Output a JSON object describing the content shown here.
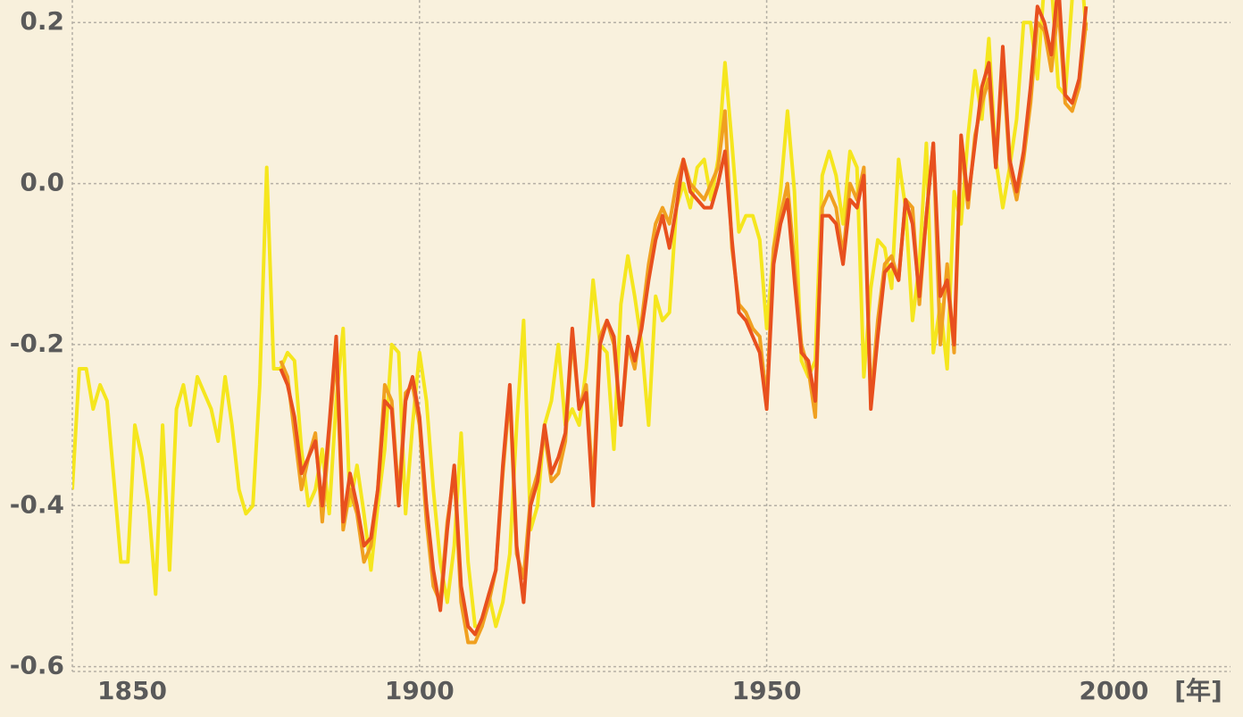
{
  "chart_data": {
    "type": "line",
    "x_label": "[年]",
    "xlim": [
      1850,
      2016.8
    ],
    "ylim": [
      -0.606,
      0.228
    ],
    "xticks": [
      1850,
      1900,
      1950,
      2000
    ],
    "yticks": [
      0.2,
      {
        "value": 0,
        "label": "0.0"
      },
      -0.2,
      -0.4,
      -0.6
    ],
    "grid": true,
    "x": [
      1850,
      1851,
      1852,
      1853,
      1854,
      1855,
      1856,
      1857,
      1858,
      1859,
      1860,
      1861,
      1862,
      1863,
      1864,
      1865,
      1866,
      1867,
      1868,
      1869,
      1870,
      1871,
      1872,
      1873,
      1874,
      1875,
      1876,
      1877,
      1878,
      1879,
      1880,
      1881,
      1882,
      1883,
      1884,
      1885,
      1886,
      1887,
      1888,
      1889,
      1890,
      1891,
      1892,
      1893,
      1894,
      1895,
      1896,
      1897,
      1898,
      1899,
      1900,
      1901,
      1902,
      1903,
      1904,
      1905,
      1906,
      1907,
      1908,
      1909,
      1910,
      1911,
      1912,
      1913,
      1914,
      1915,
      1916,
      1917,
      1918,
      1919,
      1920,
      1921,
      1922,
      1923,
      1924,
      1925,
      1926,
      1927,
      1928,
      1929,
      1930,
      1931,
      1932,
      1933,
      1934,
      1935,
      1936,
      1937,
      1938,
      1939,
      1940,
      1941,
      1942,
      1943,
      1944,
      1945,
      1946,
      1947,
      1948,
      1949,
      1950,
      1951,
      1952,
      1953,
      1954,
      1955,
      1956,
      1957,
      1958,
      1959,
      1960,
      1961,
      1962,
      1963,
      1964,
      1965,
      1966,
      1967,
      1968,
      1969,
      1970,
      1971,
      1972,
      1973,
      1974,
      1975,
      1976,
      1977,
      1978,
      1979,
      1980,
      1981,
      1982,
      1983,
      1984,
      1985,
      1986,
      1987,
      1988,
      1989,
      1990,
      1991,
      1992,
      1993,
      1994,
      1995,
      1996
    ],
    "series": [
      {
        "color": "#f5e61e",
        "values": [
          -0.38,
          -0.23,
          -0.23,
          -0.28,
          -0.25,
          -0.27,
          -0.37,
          -0.47,
          -0.47,
          -0.3,
          -0.34,
          -0.4,
          -0.51,
          -0.3,
          -0.48,
          -0.28,
          -0.25,
          -0.3,
          -0.24,
          -0.26,
          -0.28,
          -0.32,
          -0.24,
          -0.3,
          -0.38,
          -0.41,
          -0.4,
          -0.25,
          0.02,
          -0.23,
          -0.23,
          -0.21,
          -0.22,
          -0.33,
          -0.4,
          -0.38,
          -0.33,
          -0.41,
          -0.27,
          -0.18,
          -0.4,
          -0.35,
          -0.41,
          -0.48,
          -0.4,
          -0.33,
          -0.2,
          -0.21,
          -0.41,
          -0.3,
          -0.21,
          -0.27,
          -0.38,
          -0.47,
          -0.52,
          -0.45,
          -0.31,
          -0.47,
          -0.55,
          -0.55,
          -0.51,
          -0.55,
          -0.52,
          -0.46,
          -0.3,
          -0.17,
          -0.43,
          -0.4,
          -0.3,
          -0.27,
          -0.2,
          -0.3,
          -0.28,
          -0.3,
          -0.23,
          -0.12,
          -0.2,
          -0.21,
          -0.33,
          -0.15,
          -0.09,
          -0.14,
          -0.2,
          -0.3,
          -0.14,
          -0.17,
          -0.16,
          -0.03,
          0.0,
          -0.03,
          0.02,
          0.03,
          -0.02,
          0.03,
          0.15,
          0.05,
          -0.06,
          -0.04,
          -0.04,
          -0.07,
          -0.18,
          -0.08,
          -0.01,
          0.09,
          -0.01,
          -0.22,
          -0.24,
          -0.22,
          0.01,
          0.04,
          0.01,
          -0.05,
          0.04,
          0.02,
          -0.24,
          -0.13,
          -0.07,
          -0.08,
          -0.13,
          0.03,
          -0.03,
          -0.17,
          -0.1,
          0.05,
          -0.21,
          -0.15,
          -0.23,
          -0.01,
          -0.05,
          0.06,
          0.14,
          0.08,
          0.18,
          0.03,
          -0.03,
          0.02,
          0.08,
          0.2,
          0.2,
          0.13,
          0.25,
          0.25,
          0.12,
          0.11,
          0.23,
          0.3,
          0.19
        ]
      },
      {
        "color": "#f0a020",
        "values": [
          null,
          null,
          null,
          null,
          null,
          null,
          null,
          null,
          null,
          null,
          null,
          null,
          null,
          null,
          null,
          null,
          null,
          null,
          null,
          null,
          null,
          null,
          null,
          null,
          null,
          null,
          null,
          null,
          null,
          null,
          -0.22,
          -0.24,
          -0.31,
          -0.38,
          -0.34,
          -0.31,
          -0.42,
          -0.31,
          -0.21,
          -0.43,
          -0.38,
          -0.41,
          -0.47,
          -0.45,
          -0.38,
          -0.25,
          -0.27,
          -0.39,
          -0.26,
          -0.25,
          -0.3,
          -0.42,
          -0.5,
          -0.52,
          -0.42,
          -0.36,
          -0.52,
          -0.57,
          -0.57,
          -0.55,
          -0.52,
          -0.48,
          -0.36,
          -0.26,
          -0.46,
          -0.49,
          -0.39,
          -0.36,
          -0.31,
          -0.37,
          -0.36,
          -0.32,
          -0.19,
          -0.28,
          -0.25,
          -0.38,
          -0.19,
          -0.17,
          -0.2,
          -0.3,
          -0.2,
          -0.23,
          -0.17,
          -0.1,
          -0.05,
          -0.03,
          -0.05,
          0.0,
          0.03,
          0.0,
          -0.01,
          -0.02,
          0.0,
          0.02,
          0.09,
          -0.08,
          -0.15,
          -0.16,
          -0.18,
          -0.19,
          -0.27,
          -0.08,
          -0.04,
          0.0,
          -0.1,
          -0.2,
          -0.23,
          -0.29,
          -0.03,
          -0.01,
          -0.03,
          -0.09,
          0.0,
          -0.02,
          0.02,
          -0.27,
          -0.17,
          -0.1,
          -0.09,
          -0.12,
          -0.02,
          -0.03,
          -0.15,
          -0.04,
          0.05,
          -0.2,
          -0.1,
          -0.21,
          0.05,
          -0.03,
          0.06,
          0.1,
          0.13,
          0.02,
          0.15,
          0.02,
          -0.02,
          0.03,
          0.1,
          0.2,
          0.19,
          0.14,
          0.22,
          0.1,
          0.09,
          0.12,
          0.2
        ]
      },
      {
        "color": "#e8501e",
        "values": [
          null,
          null,
          null,
          null,
          null,
          null,
          null,
          null,
          null,
          null,
          null,
          null,
          null,
          null,
          null,
          null,
          null,
          null,
          null,
          null,
          null,
          null,
          null,
          null,
          null,
          null,
          null,
          null,
          null,
          null,
          -0.23,
          -0.25,
          -0.29,
          -0.36,
          -0.34,
          -0.32,
          -0.4,
          -0.3,
          -0.19,
          -0.42,
          -0.36,
          -0.4,
          -0.45,
          -0.44,
          -0.38,
          -0.27,
          -0.28,
          -0.4,
          -0.27,
          -0.24,
          -0.29,
          -0.4,
          -0.48,
          -0.53,
          -0.43,
          -0.35,
          -0.5,
          -0.55,
          -0.56,
          -0.54,
          -0.51,
          -0.48,
          -0.35,
          -0.25,
          -0.45,
          -0.52,
          -0.4,
          -0.37,
          -0.3,
          -0.36,
          -0.34,
          -0.31,
          -0.18,
          -0.28,
          -0.26,
          -0.4,
          -0.2,
          -0.17,
          -0.19,
          -0.3,
          -0.19,
          -0.22,
          -0.18,
          -0.12,
          -0.07,
          -0.04,
          -0.08,
          -0.03,
          0.03,
          -0.01,
          -0.02,
          -0.03,
          -0.03,
          0.0,
          0.04,
          -0.07,
          -0.16,
          -0.17,
          -0.19,
          -0.21,
          -0.28,
          -0.1,
          -0.05,
          -0.02,
          -0.12,
          -0.21,
          -0.22,
          -0.27,
          -0.04,
          -0.04,
          -0.05,
          -0.1,
          -0.02,
          -0.03,
          0.01,
          -0.28,
          -0.19,
          -0.11,
          -0.1,
          -0.12,
          -0.02,
          -0.05,
          -0.14,
          -0.04,
          0.05,
          -0.14,
          -0.12,
          -0.2,
          0.06,
          -0.02,
          0.05,
          0.12,
          0.15,
          0.02,
          0.17,
          0.03,
          -0.01,
          0.04,
          0.12,
          0.22,
          0.2,
          0.16,
          0.25,
          0.11,
          0.1,
          0.13,
          0.22
        ]
      }
    ]
  }
}
